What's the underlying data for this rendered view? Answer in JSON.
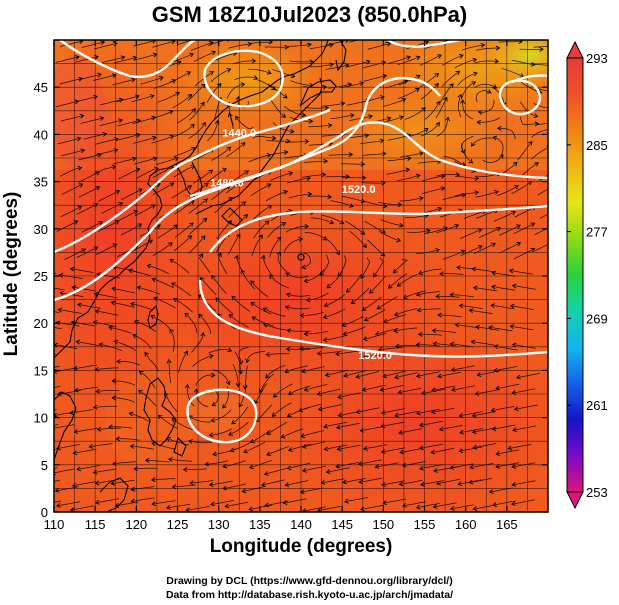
{
  "title": "GSM 18Z10Jul2023 (850.0hPa)",
  "chart_data": {
    "type": "heatmap",
    "title": "GSM 18Z10Jul2023 (850.0hPa)",
    "xlabel": "Longitude (degrees)",
    "ylabel": "Latitude  (degrees)",
    "xlim": [
      110,
      170
    ],
    "ylim": [
      0,
      50
    ],
    "x_ticks": [
      "110",
      "115",
      "120",
      "125",
      "130",
      "135",
      "140",
      "145",
      "150",
      "155",
      "160",
      "165"
    ],
    "y_ticks": [
      "0",
      "5",
      "10",
      "15",
      "20",
      "25",
      "30",
      "35",
      "40",
      "45"
    ],
    "grid": true,
    "colorbar": {
      "labels": [
        "293",
        "285",
        "277",
        "269",
        "261",
        "253"
      ],
      "range": [
        253,
        293
      ],
      "colors": [
        "#e0147a",
        "#7a0ac8",
        "#1414c8",
        "#1464e6",
        "#14b4f0",
        "#14d2aa",
        "#28d23c",
        "#8cdc14",
        "#e6e614",
        "#f0b414",
        "#f08214",
        "#f05028",
        "#e63c3c"
      ]
    },
    "contours": [
      {
        "label": "1440.0",
        "lon": 132.5,
        "lat": 39.8
      },
      {
        "label": "1480.0",
        "lon": 131.0,
        "lat": 34.5
      },
      {
        "label": "1520.0",
        "lon": 147.0,
        "lat": 33.8
      },
      {
        "label": "1520.0",
        "lon": 149.0,
        "lat": 16.2
      }
    ]
  },
  "credits": {
    "line1": "Drawing by DCL (https://www.gfd-dennou.org/library/dcl/)",
    "line2": "Data from http://database.rish.kyoto-u.ac.jp/arch/jmadata/"
  }
}
